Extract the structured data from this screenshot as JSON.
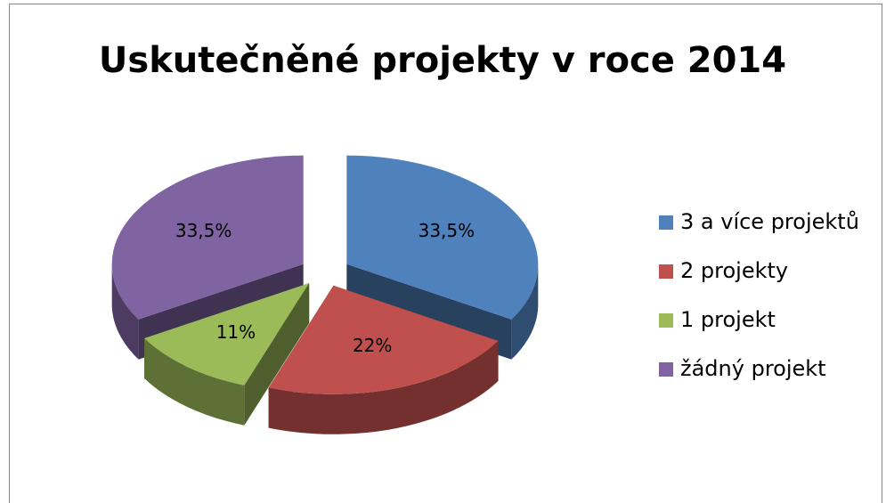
{
  "chart_data": {
    "type": "pie",
    "title": "Uskutečněné projekty v roce 2014",
    "categories": [
      "3 a více projektů",
      "2 projekty",
      "1 projekt",
      "žádný projekt"
    ],
    "values": [
      33.5,
      22,
      11,
      33.5
    ],
    "value_labels": [
      "33,5%",
      "22%",
      "11%",
      "33,5%"
    ],
    "colors": [
      "#4f81bd",
      "#c0504d",
      "#9bbb59",
      "#8064a2"
    ],
    "legend": "right"
  }
}
